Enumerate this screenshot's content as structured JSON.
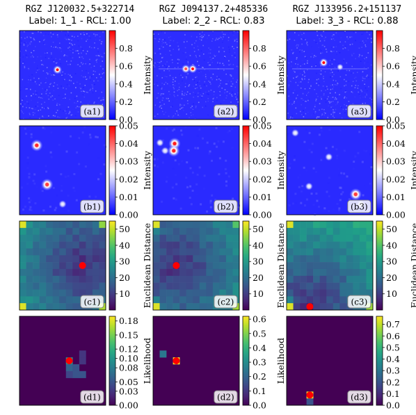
{
  "columns": [
    {
      "source": "RGZ J120032.5+322714",
      "label_line": "Label:  1_1 - RCL: 1.00"
    },
    {
      "source": "RGZ J094137.2+485336",
      "label_line": "Label:  2_2 - RCL: 0.83"
    },
    {
      "source": "RGZ J133956.2+151137",
      "label_line": "Label:  3_3 - RCL: 0.88"
    }
  ],
  "colors": {
    "coolwarm_low": "#3b4cc0",
    "coolwarm_mid": "#dddddd",
    "coolwarm_high": "#b40426",
    "bwr_low": "#0000ff",
    "bwr_mid": "#ffffff",
    "bwr_high": "#ff0000",
    "viridis": [
      "#440154",
      "#482878",
      "#3e4989",
      "#31688e",
      "#26828e",
      "#1f9e89",
      "#35b779",
      "#6ece58",
      "#b5de2b",
      "#fde725"
    ],
    "marker": "#ff0000"
  },
  "chart_data": [
    {
      "type": "heatmap",
      "row": "a",
      "colormap": "blue-white-red",
      "colorbar_label": "Intensity",
      "colorbar_range": [
        0.0,
        1.0
      ],
      "colorbar_ticks": [
        "0.0",
        "0.2",
        "0.4",
        "0.6",
        "0.8"
      ],
      "panel_labels": [
        "(a1)",
        "(a2)",
        "(a3)"
      ],
      "sources": [
        [
          {
            "x": 0.44,
            "y": 0.44,
            "v": 1.0
          }
        ],
        [
          {
            "x": 0.46,
            "y": 0.43,
            "v": 1.0
          },
          {
            "x": 0.38,
            "y": 0.43,
            "v": 0.6
          }
        ],
        [
          {
            "x": 0.43,
            "y": 0.36,
            "v": 1.0
          },
          {
            "x": 0.62,
            "y": 0.41,
            "v": 0.5
          }
        ]
      ]
    },
    {
      "type": "heatmap",
      "row": "b",
      "colormap": "blue-white-red",
      "colorbar_label": "Intensity",
      "colorbar_range": [
        0.0,
        0.05
      ],
      "colorbar_ticks": [
        "0.00",
        "0.01",
        "0.02",
        "0.03",
        "0.04",
        "0.05"
      ],
      "panel_labels": [
        "(b1)",
        "(b2)",
        "(b3)"
      ],
      "sources": [
        [
          {
            "x": 0.2,
            "y": 0.22,
            "v": 0.04
          },
          {
            "x": 0.32,
            "y": 0.66,
            "v": 0.035
          },
          {
            "x": 0.5,
            "y": 0.88,
            "v": 0.008
          }
        ],
        [
          {
            "x": 0.25,
            "y": 0.2,
            "v": 0.043
          },
          {
            "x": 0.24,
            "y": 0.28,
            "v": 0.041
          },
          {
            "x": 0.08,
            "y": 0.19,
            "v": 0.01
          },
          {
            "x": 0.14,
            "y": 0.28,
            "v": 0.008
          }
        ],
        [
          {
            "x": 0.1,
            "y": 0.08,
            "v": 0.01
          },
          {
            "x": 0.49,
            "y": 0.35,
            "v": 0.01
          },
          {
            "x": 0.8,
            "y": 0.77,
            "v": 0.035
          },
          {
            "x": 0.26,
            "y": 0.68,
            "v": 0.006
          },
          {
            "x": 0.86,
            "y": 0.88,
            "v": 0.005
          }
        ]
      ]
    },
    {
      "type": "heatmap",
      "row": "c",
      "colormap": "viridis",
      "colorbar_label": "Euclidean Distance",
      "colorbar_range": [
        0,
        55
      ],
      "colorbar_ticks": [
        "10",
        "20",
        "30",
        "40",
        "50"
      ],
      "panel_labels": [
        "(c1)",
        "(c2)",
        "(c3)"
      ],
      "best_match": [
        {
          "col": 9,
          "row": 6
        },
        {
          "col": 3,
          "row": 6
        },
        {
          "col": 3,
          "row": 12
        }
      ],
      "grid_size": 13
    },
    {
      "type": "heatmap",
      "row": "d",
      "colormap": "viridis",
      "panel_labels": [
        "(d1)",
        "(d2)",
        "(d3)"
      ],
      "colorbar_labels": [
        "Likelihood",
        "Likelihood",
        ""
      ],
      "colorbar_ranges": [
        [
          0.0,
          0.19
        ],
        [
          0.0,
          0.62
        ],
        [
          0.0,
          0.77
        ]
      ],
      "colorbar_ticks": [
        [
          "0.00",
          "0.03",
          "0.05",
          "0.08",
          "0.10",
          "0.12",
          "0.15",
          "0.18"
        ],
        [
          "0.0",
          "0.1",
          "0.2",
          "0.3",
          "0.4",
          "0.5",
          "0.6"
        ],
        [
          "0.0",
          "0.1",
          "0.2",
          "0.3",
          "0.4",
          "0.5",
          "0.6",
          "0.7"
        ]
      ],
      "grid_size": 13,
      "cells": [
        [
          {
            "col": 7,
            "row": 6,
            "v": 0.1
          },
          {
            "col": 7,
            "row": 7,
            "v": 0.06
          },
          {
            "col": 8,
            "row": 7,
            "v": 0.05
          },
          {
            "col": 8,
            "row": 8,
            "v": 0.05
          },
          {
            "col": 9,
            "row": 8,
            "v": 0.05
          },
          {
            "col": 9,
            "row": 5,
            "v": 0.03
          },
          {
            "col": 9,
            "row": 6,
            "v": 0.03
          },
          {
            "col": 7,
            "row": 8,
            "v": 0.04
          }
        ],
        [
          {
            "col": 1,
            "row": 5,
            "v": 0.25
          },
          {
            "col": 3,
            "row": 6,
            "v": 0.62
          }
        ],
        [
          {
            "col": 3,
            "row": 11,
            "v": 0.77
          },
          {
            "col": 3,
            "row": 12,
            "v": 0.2
          }
        ]
      ],
      "best_match": [
        {
          "col": 7,
          "row": 6
        },
        {
          "col": 3,
          "row": 6
        },
        {
          "col": 3,
          "row": 11
        }
      ]
    }
  ]
}
